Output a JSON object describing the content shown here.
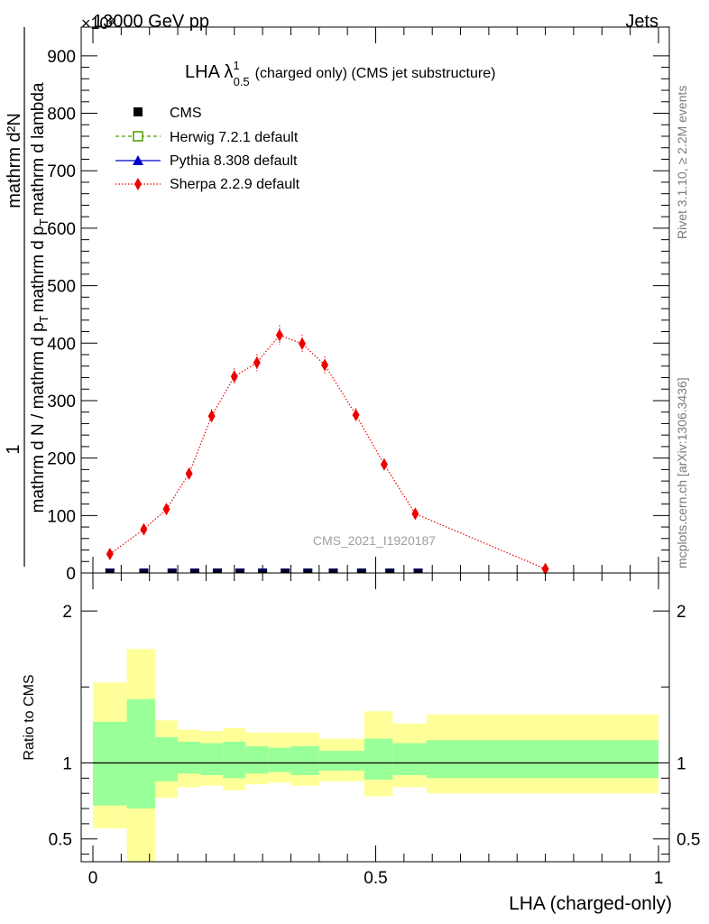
{
  "header": {
    "energy_label": "13000 GeV pp",
    "category_label": "Jets",
    "exponent_label": "×10³"
  },
  "chart_data": [
    {
      "type": "scatter",
      "title": "LHA λ¹₀.₅ (charged only) (CMS jet substructure)",
      "title_main": "LHA λ",
      "title_sup": "1",
      "title_sub": "0.5",
      "title_rest": "(charged only) (CMS jet substructure)",
      "xlabel": "LHA (charged-only)",
      "ylabel_numerator": "1",
      "ylabel_denominator": "mathrm d N / mathrm d p_T mathrm d p_T mathrm d lambda",
      "ylabel_main": "mathrm d N / mathrm d p",
      "ylabel_sub1": "T",
      "ylabel_mid": "mathrm d p",
      "ylabel_sub2": "T",
      "ylabel_end": "mathrm d lambda",
      "ylabel_numerator_text": "mathrm d²N",
      "xlim": [
        0,
        1
      ],
      "ylim": [
        0,
        950
      ],
      "y_scale_factor": 1000,
      "yticks": [
        0,
        100,
        200,
        300,
        400,
        500,
        600,
        700,
        800,
        900
      ],
      "ytick_labels": [
        "0",
        "100",
        "200",
        "300",
        "400",
        "500",
        "600",
        "700",
        "800",
        "900"
      ],
      "watermark": "CMS_2021_I1920187",
      "legend_position": "top-left",
      "legend": [
        {
          "name": "CMS",
          "color": "#000000",
          "marker": "square"
        },
        {
          "name": "Herwig 7.2.1 default",
          "color": "#4a9a00",
          "marker": "open-square",
          "line": "dashed"
        },
        {
          "name": "Pythia 8.308 default",
          "color": "#0000cc",
          "marker": "triangle",
          "line": "solid"
        },
        {
          "name": "Sherpa 2.2.9 default",
          "color": "#ee0000",
          "marker": "diamond",
          "line": "dotted"
        }
      ],
      "bin_edges": [
        0.0,
        0.06,
        0.12,
        0.16,
        0.2,
        0.24,
        0.28,
        0.32,
        0.36,
        0.4,
        0.45,
        0.5,
        0.55,
        0.6,
        1.0
      ],
      "series": [
        {
          "name": "CMS",
          "x": [
            0.03,
            0.09,
            0.14,
            0.18,
            0.22,
            0.26,
            0.3,
            0.34,
            0.38,
            0.425,
            0.475,
            0.525,
            0.575,
            0.8
          ],
          "values": [
            0,
            0,
            0,
            0,
            0,
            0,
            0,
            0,
            0,
            0,
            0,
            0,
            0,
            0
          ]
        },
        {
          "name": "Sherpa 2.2.9 default",
          "x": [
            0.03,
            0.09,
            0.13,
            0.17,
            0.21,
            0.25,
            0.29,
            0.33,
            0.37,
            0.41,
            0.465,
            0.515,
            0.57,
            0.8
          ],
          "values": [
            33,
            76,
            111,
            173,
            273,
            342,
            366,
            414,
            399,
            362,
            275,
            189,
            103,
            7
          ],
          "errors": [
            6,
            7,
            9,
            10,
            12,
            14,
            15,
            17,
            16,
            15,
            12,
            10,
            7,
            3
          ]
        }
      ]
    },
    {
      "type": "area",
      "ylabel": "Ratio to CMS",
      "xlim": [
        0,
        1
      ],
      "ylim": [
        0.35,
        2.25
      ],
      "yticks": [
        0.5,
        1,
        2
      ],
      "ytick_labels": [
        "0.5",
        "1",
        "2"
      ],
      "xticks": [
        0,
        0.5,
        1
      ],
      "xtick_labels": [
        "0",
        "0.5",
        "1"
      ],
      "bin_edges": [
        0.0,
        0.06,
        0.11,
        0.15,
        0.19,
        0.23,
        0.27,
        0.31,
        0.35,
        0.4,
        0.45,
        0.48,
        0.53,
        0.59,
        1.0
      ],
      "inner_band_hi": [
        1.27,
        1.42,
        1.17,
        1.14,
        1.13,
        1.14,
        1.11,
        1.1,
        1.11,
        1.08,
        1.08,
        1.16,
        1.13,
        1.15
      ],
      "inner_band_lo": [
        0.72,
        0.7,
        0.88,
        0.93,
        0.92,
        0.9,
        0.93,
        0.94,
        0.92,
        0.95,
        0.95,
        0.89,
        0.92,
        0.9
      ],
      "outer_band_hi": [
        1.53,
        1.75,
        1.28,
        1.22,
        1.21,
        1.23,
        1.2,
        1.2,
        1.2,
        1.16,
        1.16,
        1.34,
        1.26,
        1.32
      ],
      "outer_band_lo": [
        0.57,
        0.35,
        0.77,
        0.84,
        0.85,
        0.82,
        0.86,
        0.87,
        0.85,
        0.88,
        0.88,
        0.78,
        0.84,
        0.8
      ],
      "reference": 1,
      "inner_color": "#99ff99",
      "outer_color": "#ffff99"
    }
  ],
  "side_labels": {
    "rivet": "Rivet 3.1.10, ≥ 2.2M events",
    "mcplots": "mcplots.cern.ch [arXiv:1306.3436]"
  }
}
